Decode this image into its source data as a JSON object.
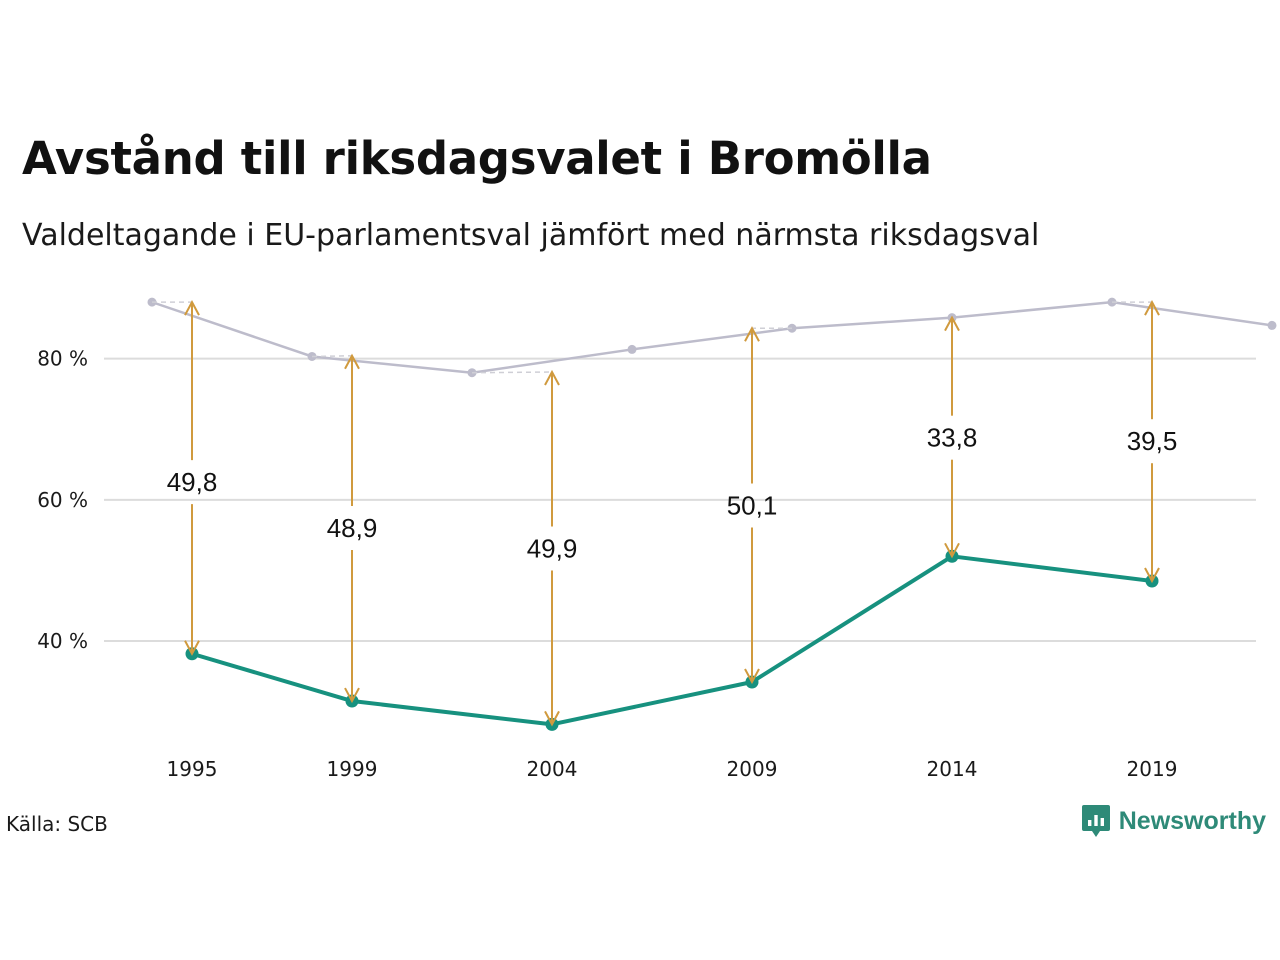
{
  "title": "Avstånd till riksdagsvalet i Bromölla",
  "subtitle": "Valdeltagande i EU-parlamentsval jämfört med närmsta riksdagsval",
  "source": "Källa: SCB",
  "brand": {
    "name": "Newsworthy",
    "icon": "newsworthy-logo-icon"
  },
  "colors": {
    "eu_line": "#17917f",
    "riksdag_line": "#bdbccb",
    "arrow": "#d09a3e",
    "grid": "#dcdcdc",
    "brand": "#2e8a78"
  },
  "chart_data": {
    "type": "line",
    "title": "Avstånd till riksdagsvalet i Bromölla",
    "subtitle": "Valdeltagande i EU-parlamentsval jämfört med närmsta riksdagsval",
    "xlabel": "",
    "ylabel": "",
    "x_ticks": [
      "1995",
      "1999",
      "2004",
      "2009",
      "2014",
      "2019"
    ],
    "y_ticks": [
      {
        "value": 40,
        "label": "40 %"
      },
      {
        "value": 60,
        "label": "60 %"
      },
      {
        "value": 80,
        "label": "80 %"
      }
    ],
    "xlim": [
      1993.0,
      2023.0
    ],
    "ylim": [
      24,
      90
    ],
    "grid": true,
    "series": [
      {
        "role": "riksdag",
        "points": [
          {
            "x": 1994.9,
            "y": 88.0
          },
          {
            "x": 1998.9,
            "y": 80.3
          },
          {
            "x": 2002.9,
            "y": 78.0
          },
          {
            "x": 2006.9,
            "y": 81.3
          },
          {
            "x": 2010.9,
            "y": 84.3
          },
          {
            "x": 2014.9,
            "y": 85.8
          },
          {
            "x": 2018.9,
            "y": 88.0
          },
          {
            "x": 2022.9,
            "y": 84.7
          }
        ]
      },
      {
        "role": "eu",
        "points": [
          {
            "x": 1995.9,
            "y": 38.2
          },
          {
            "x": 1999.9,
            "y": 31.5
          },
          {
            "x": 2004.9,
            "y": 28.2
          },
          {
            "x": 2009.9,
            "y": 34.2
          },
          {
            "x": 2014.9,
            "y": 52.0
          },
          {
            "x": 2019.9,
            "y": 48.5
          }
        ]
      }
    ],
    "differences": [
      {
        "x": 1995.9,
        "from": 88.0,
        "to": 38.2,
        "label": "49,8",
        "label_y": 62.5
      },
      {
        "x": 1999.9,
        "from": 80.4,
        "to": 31.5,
        "label": "48,9",
        "label_y": 56.0
      },
      {
        "x": 2004.9,
        "from": 78.1,
        "to": 28.2,
        "label": "49,9",
        "label_y": 53.1
      },
      {
        "x": 2009.9,
        "from": 84.3,
        "to": 34.2,
        "label": "50,1",
        "label_y": 59.2
      },
      {
        "x": 2014.9,
        "from": 85.8,
        "to": 52.0,
        "label": "33,8",
        "label_y": 68.8
      },
      {
        "x": 2019.9,
        "from": 88.0,
        "to": 48.5,
        "label": "39,5",
        "label_y": 68.3
      }
    ]
  }
}
